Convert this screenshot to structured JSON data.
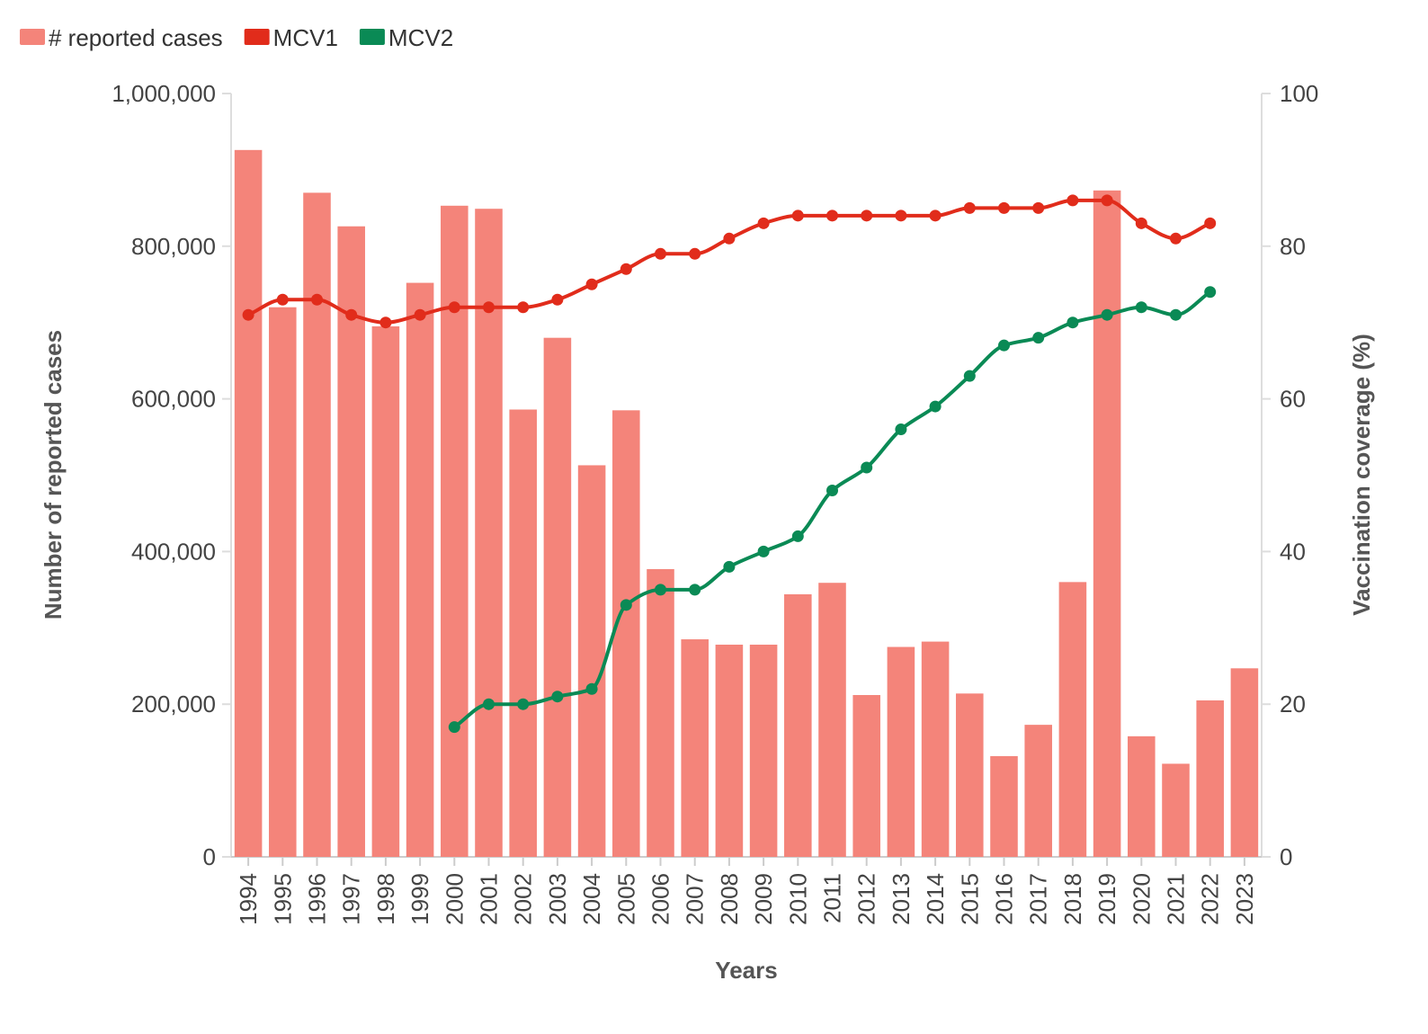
{
  "chart_data": {
    "type": "bar",
    "categories": [
      "1994",
      "1995",
      "1996",
      "1997",
      "1998",
      "1999",
      "2000",
      "2001",
      "2002",
      "2003",
      "2004",
      "2005",
      "2006",
      "2007",
      "2008",
      "2009",
      "2010",
      "2011",
      "2012",
      "2013",
      "2014",
      "2015",
      "2016",
      "2017",
      "2018",
      "2019",
      "2020",
      "2021",
      "2022",
      "2023"
    ],
    "series": [
      {
        "name": "# reported cases",
        "kind": "bar",
        "axis": "left",
        "color": "#f4847a",
        "values": [
          926000,
          720000,
          870000,
          826000,
          695000,
          752000,
          853000,
          849000,
          586000,
          680000,
          513000,
          585000,
          377000,
          285000,
          278000,
          278000,
          344000,
          359000,
          212000,
          275000,
          282000,
          214000,
          132000,
          173000,
          360000,
          873000,
          158000,
          122000,
          205000,
          247000
        ]
      },
      {
        "name": "MCV1",
        "kind": "line",
        "axis": "right",
        "color": "#e12c1b",
        "values": [
          71,
          73,
          73,
          71,
          70,
          71,
          72,
          72,
          72,
          73,
          75,
          77,
          79,
          79,
          81,
          83,
          84,
          84,
          84,
          84,
          84,
          85,
          85,
          85,
          86,
          86,
          83,
          81,
          83,
          null
        ]
      },
      {
        "name": "MCV2",
        "kind": "line",
        "axis": "right",
        "color": "#0a8a55",
        "values": [
          null,
          null,
          null,
          null,
          null,
          null,
          17,
          20,
          20,
          21,
          22,
          33,
          35,
          35,
          38,
          40,
          42,
          48,
          51,
          56,
          59,
          63,
          67,
          68,
          70,
          71,
          72,
          71,
          74,
          null
        ]
      }
    ],
    "xlabel": "Years",
    "ylabel": "Number of reported cases",
    "y2label": "Vaccination coverage (%)",
    "ylim": [
      0,
      1000000
    ],
    "y2lim": [
      0,
      100
    ],
    "yticks": [
      {
        "value": 0,
        "label": "0"
      },
      {
        "value": 200000,
        "label": "200,000"
      },
      {
        "value": 400000,
        "label": "400,000"
      },
      {
        "value": 600000,
        "label": "600,000"
      },
      {
        "value": 800000,
        "label": "800,000"
      },
      {
        "value": 1000000,
        "label": "1,000,000"
      }
    ],
    "y2ticks": [
      {
        "value": 0,
        "label": "0"
      },
      {
        "value": 20,
        "label": "20"
      },
      {
        "value": 40,
        "label": "40"
      },
      {
        "value": 60,
        "label": "60"
      },
      {
        "value": 80,
        "label": "80"
      },
      {
        "value": 100,
        "label": "100"
      }
    ],
    "grid": false,
    "legend": {
      "position": "top-left",
      "items": [
        {
          "label": "# reported cases",
          "color": "#f4847a"
        },
        {
          "label": "MCV1",
          "color": "#e12c1b"
        },
        {
          "label": "MCV2",
          "color": "#0a8a55"
        }
      ]
    }
  }
}
